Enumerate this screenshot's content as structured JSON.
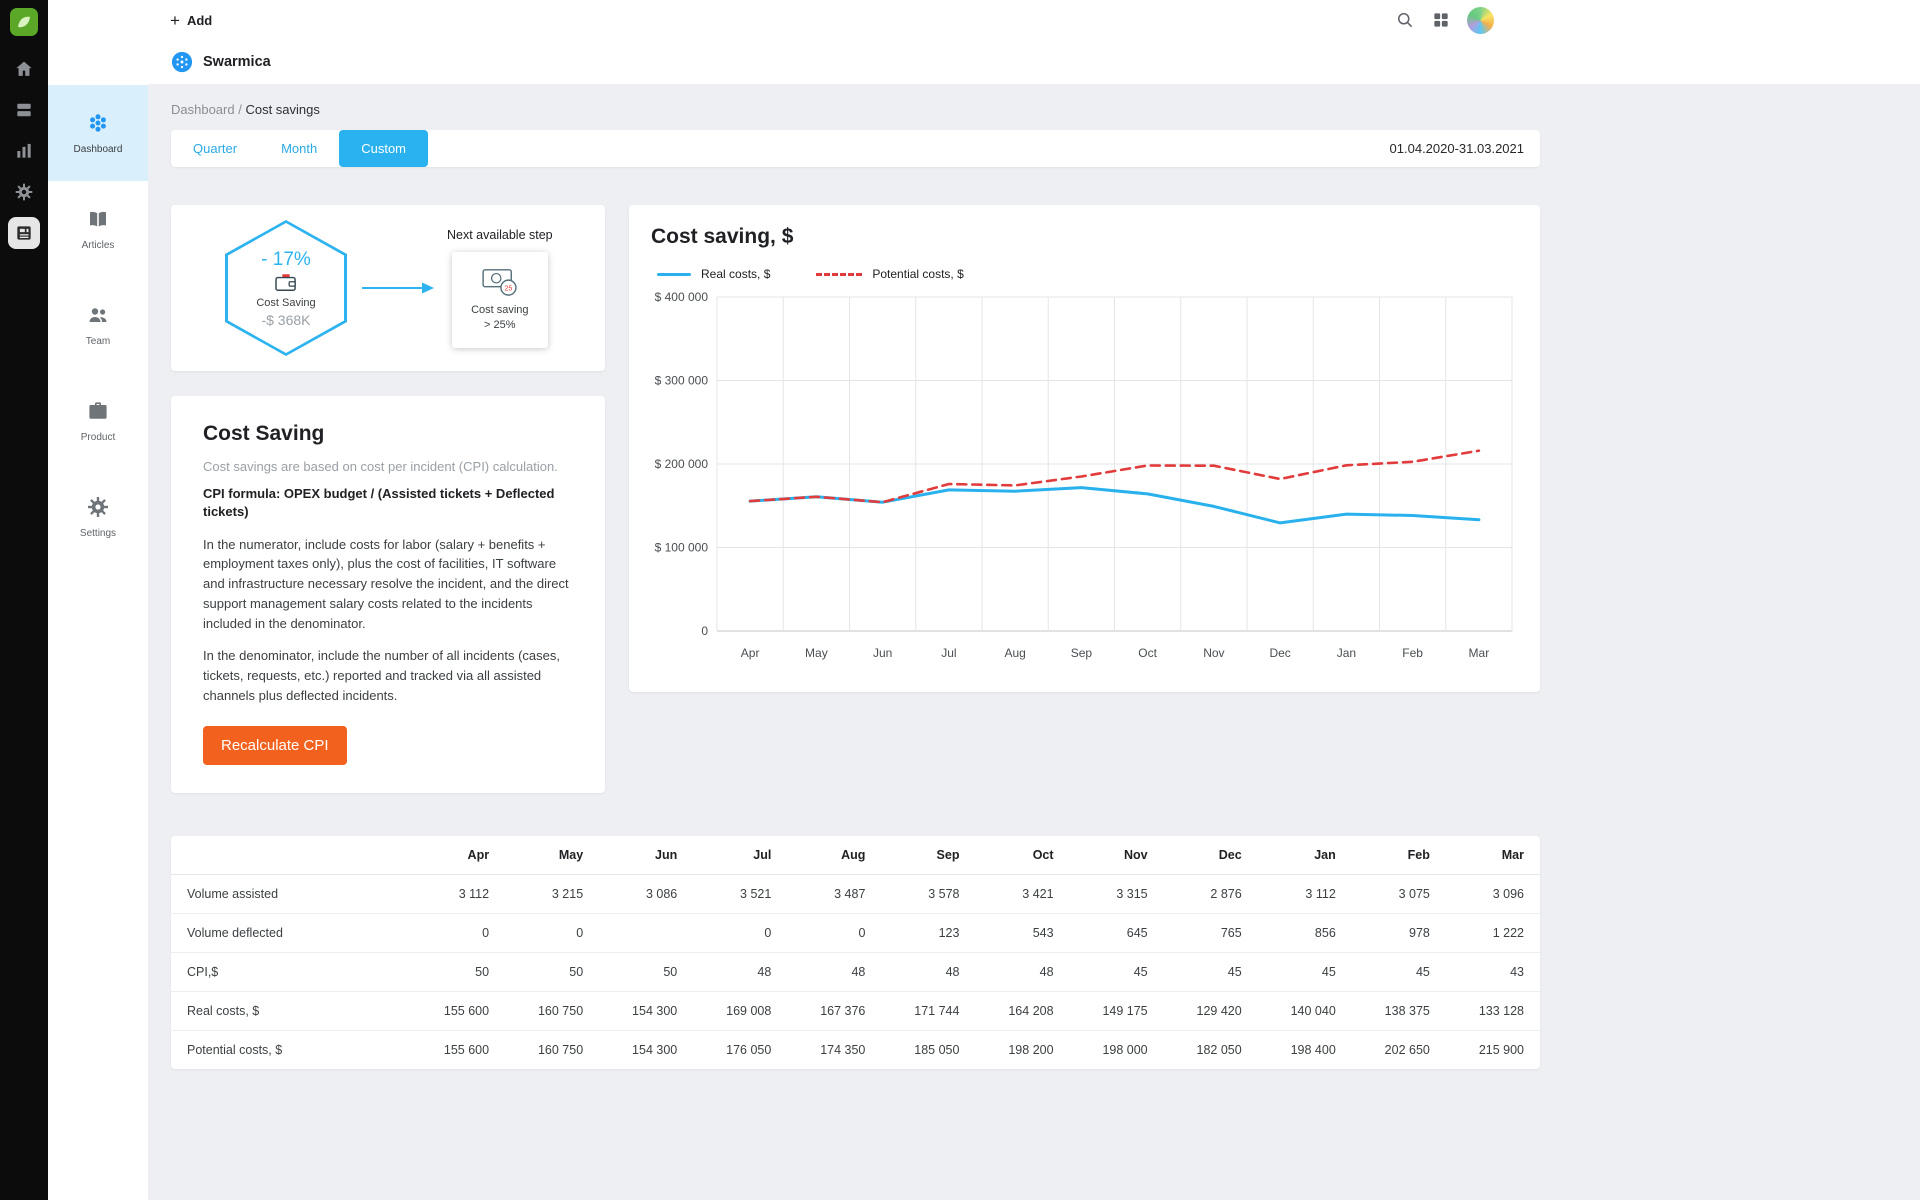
{
  "colors": {
    "accent_blue": "#29b2ef",
    "link_blue": "#29a9e6",
    "button_orange": "#f2611d",
    "chart_real_blue": "#29b1ed",
    "chart_potential_red": "#e23b3b",
    "sidebar_active_bg": "#d9effb"
  },
  "rail": {
    "icons": [
      "app-logo",
      "home",
      "knowledge-base",
      "stats",
      "settings",
      "articles"
    ],
    "active_icon": "articles"
  },
  "topbar": {
    "plus_glyph": "+",
    "add_label": "Add",
    "icons": [
      "search-icon",
      "apps-grid-icon",
      "user-avatar"
    ]
  },
  "header": {
    "workspace": "Swarmica"
  },
  "sidebar": {
    "items": [
      {
        "label": "Dashboard",
        "icon": "dashboard-cluster-icon",
        "active": true
      },
      {
        "label": "Articles",
        "icon": "book-icon",
        "active": false
      },
      {
        "label": "Team",
        "icon": "people-icon",
        "active": false
      },
      {
        "label": "Product",
        "icon": "briefcase-icon",
        "active": false
      },
      {
        "label": "Settings",
        "icon": "gear-icon",
        "active": false
      }
    ]
  },
  "breadcrumb": {
    "parent": "Dashboard",
    "separator": " / ",
    "current": "Cost savings"
  },
  "tabs": {
    "items": [
      {
        "label": "Quarter",
        "active": false
      },
      {
        "label": "Month",
        "active": false
      },
      {
        "label": "Custom",
        "active": true
      }
    ],
    "date_range": "01.04.2020-31.03.2021"
  },
  "flow": {
    "hexagon": {
      "percent": "- 17%",
      "icon": "wallet-icon",
      "label": "Cost Saving",
      "amount": "-$ 368K"
    },
    "next_step_title": "Next available step",
    "next_step": {
      "icon": "money-clock-icon",
      "line1": "Cost saving",
      "line2": "> 25%"
    }
  },
  "cost_saving": {
    "title": "Cost Saving",
    "intro": "Cost savings are based on cost per incident (CPI) calculation.",
    "formula": "CPI formula: OPEX budget / (Assisted tickets + Deflected tickets)",
    "para1": "In the numerator, include costs for labor (salary + benefits + employment taxes only), plus the cost of facilities, IT software and infrastructure necessary resolve the incident, and the direct support management salary costs related to the incidents included in the denominator.",
    "para2": "In the denominator, include the number of all incidents (cases, tickets, requests, etc.) reported and tracked via all assisted channels plus deflected incidents.",
    "button": "Recalculate CPI"
  },
  "chart": {
    "title": "Cost saving, $"
  },
  "chart_data": {
    "type": "line",
    "title": "Cost saving, $",
    "x": [
      "Apr",
      "May",
      "Jun",
      "Jul",
      "Aug",
      "Sep",
      "Oct",
      "Nov",
      "Dec",
      "Jan",
      "Feb",
      "Mar"
    ],
    "series": [
      {
        "name": "Real costs, $",
        "color": "#29b1ed",
        "style": "solid",
        "values": [
          155600,
          160750,
          154300,
          169008,
          167376,
          171744,
          164208,
          149175,
          129420,
          140040,
          138375,
          133128
        ]
      },
      {
        "name": "Potential costs, $",
        "color": "#e23b3b",
        "style": "dashed",
        "values": [
          155600,
          160750,
          154300,
          176050,
          174350,
          185050,
          198200,
          198000,
          182050,
          198400,
          202650,
          215900
        ]
      }
    ],
    "ylim": [
      0,
      400000
    ],
    "yticks": [
      {
        "value": 0,
        "label": "0"
      },
      {
        "value": 100000,
        "label": "$ 100 000"
      },
      {
        "value": 200000,
        "label": "$ 200 000"
      },
      {
        "value": 300000,
        "label": "$ 300 000"
      },
      {
        "value": 400000,
        "label": "$ 400 000"
      }
    ],
    "grid": true,
    "legend_position": "top-left"
  },
  "table": {
    "columns": [
      "Apr",
      "May",
      "Jun",
      "Jul",
      "Aug",
      "Sep",
      "Oct",
      "Nov",
      "Dec",
      "Jan",
      "Feb",
      "Mar"
    ],
    "rows": [
      {
        "label": "Volume assisted",
        "values": [
          "3 112",
          "3 215",
          "3 086",
          "3 521",
          "3 487",
          "3 578",
          "3 421",
          "3 315",
          "2 876",
          "3 112",
          "3 075",
          "3 096"
        ]
      },
      {
        "label": "Volume deflected",
        "values": [
          "0",
          "0",
          "",
          "0",
          "0",
          "123",
          "543",
          "645",
          "765",
          "856",
          "978",
          "1 222"
        ]
      },
      {
        "label": "CPI,$",
        "values": [
          "50",
          "50",
          "50",
          "48",
          "48",
          "48",
          "48",
          "45",
          "45",
          "45",
          "45",
          "43"
        ]
      },
      {
        "label": "Real costs, $",
        "values": [
          "155 600",
          "160 750",
          "154 300",
          "169 008",
          "167 376",
          "171 744",
          "164 208",
          "149 175",
          "129 420",
          "140 040",
          "138 375",
          "133 128"
        ]
      },
      {
        "label": "Potential costs, $",
        "values": [
          "155 600",
          "160 750",
          "154 300",
          "176 050",
          "174 350",
          "185 050",
          "198 200",
          "198 000",
          "182 050",
          "198 400",
          "202 650",
          "215 900"
        ]
      }
    ]
  }
}
